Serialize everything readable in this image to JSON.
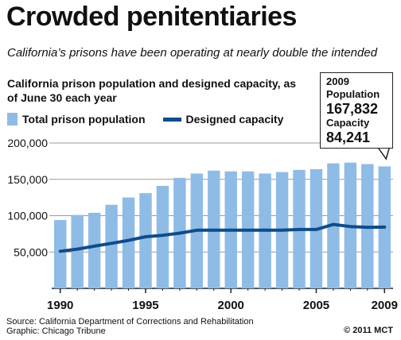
{
  "header": {
    "title": "Crowded penitentiaries",
    "subtitle": "California’s prisons have been operating at nearly double the intended"
  },
  "legend": {
    "bar_label": "Total prison population",
    "line_label": "Designed capacity"
  },
  "callout": {
    "year": "2009",
    "population_label": "Population",
    "population_value": "167,832",
    "capacity_label": "Capacity",
    "capacity_value": "84,241"
  },
  "footer": {
    "source": "Source: California Department of Corrections and Rehabilitation",
    "graphic": "Graphic: Chicago Tribune",
    "copyright": "© 2011 MCT"
  },
  "colors": {
    "bar": "#8fbce6",
    "line": "#0f4c8a",
    "grid": "#9a9a9a"
  },
  "chart_data": {
    "type": "bar",
    "title": "California prison population and designed capacity, as of June 30 each year",
    "categories": [
      1990,
      1991,
      1992,
      1993,
      1994,
      1995,
      1996,
      1997,
      1998,
      1999,
      2000,
      2001,
      2002,
      2003,
      2004,
      2005,
      2006,
      2007,
      2008,
      2009
    ],
    "x_tick_labels": [
      "1990",
      "1995",
      "2000",
      "2005",
      "2009"
    ],
    "y_tick_labels": [
      "50,000",
      "100,000",
      "150,000",
      "200,000"
    ],
    "y_ticks": [
      50000,
      100000,
      150000,
      200000
    ],
    "ylim": [
      0,
      200000
    ],
    "series": [
      {
        "name": "Total prison population",
        "type": "bar",
        "values": [
          94000,
          101000,
          104000,
          115000,
          125000,
          131000,
          141000,
          152000,
          158000,
          162000,
          161000,
          161000,
          158000,
          160000,
          163000,
          164000,
          172000,
          173000,
          171000,
          167832
        ]
      },
      {
        "name": "Designed capacity",
        "type": "line",
        "values": [
          51000,
          54000,
          58000,
          62000,
          66000,
          71000,
          73000,
          76000,
          80000,
          80000,
          80000,
          80000,
          80000,
          80000,
          81000,
          81000,
          88000,
          85000,
          84000,
          84241
        ]
      }
    ],
    "grid": true,
    "legend_position": "top-left"
  }
}
